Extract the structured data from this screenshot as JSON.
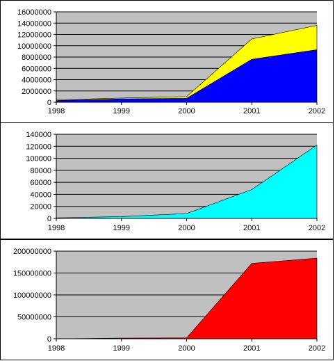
{
  "chart_data": [
    {
      "type": "area",
      "stacked": true,
      "categories": [
        "1998",
        "1999",
        "2000",
        "2001",
        "2002"
      ],
      "series": [
        {
          "values": [
            300000,
            600000,
            700000,
            7600000,
            9300000
          ],
          "color": "#0000ff"
        },
        {
          "values": [
            100000,
            150000,
            300000,
            3600000,
            4300000
          ],
          "color": "#ffff00"
        }
      ],
      "ylim": [
        0,
        16000000
      ],
      "yticks": [
        "0",
        "2000000",
        "4000000",
        "6000000",
        "8000000",
        "10000000",
        "12000000",
        "14000000",
        "16000000"
      ],
      "plot_background": "#c0c0c0",
      "grid": true,
      "legend": "none"
    },
    {
      "type": "area",
      "categories": [
        "1998",
        "1999",
        "2000",
        "2001",
        "2002"
      ],
      "series": [
        {
          "values": [
            1000,
            3000,
            8000,
            48000,
            122000
          ],
          "color": "#00ffff"
        }
      ],
      "ylim": [
        0,
        140000
      ],
      "yticks": [
        "0",
        "20000",
        "40000",
        "60000",
        "80000",
        "100000",
        "120000",
        "140000"
      ],
      "plot_background": "#c0c0c0",
      "grid": true,
      "legend": "none"
    },
    {
      "type": "area",
      "categories": [
        "1998",
        "1999",
        "2000",
        "2001",
        "2002"
      ],
      "series": [
        {
          "values": [
            0,
            1500000,
            2000000,
            172000000,
            184000000
          ],
          "color": "#ff0000"
        }
      ],
      "ylim": [
        0,
        200000000
      ],
      "yticks": [
        "0",
        "50000000",
        "100000000",
        "150000000",
        "200000000"
      ],
      "plot_background": "#c0c0c0",
      "grid": true,
      "legend": "none"
    }
  ]
}
